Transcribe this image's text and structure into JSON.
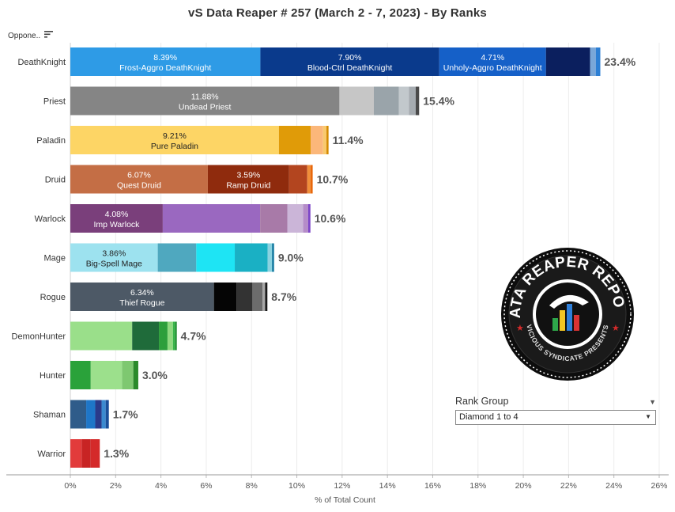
{
  "page": {
    "title": "vS Data Reaper #  257 (March 2 - 7, 2023) - By Ranks",
    "sort_label": "Oppone..",
    "sort_icon": "sort-descending-icon"
  },
  "filter": {
    "title": "Rank Group",
    "value": "Diamond 1 to 4",
    "caret_icon": "dropdown-caret-icon"
  },
  "logo": {
    "name": "data-reaper-report-logo",
    "text_top": "DATA REAPER REPORT",
    "text_bottom": "VICIOUS SYNDICATE PRESENTS"
  },
  "chart_data": {
    "type": "bar",
    "orientation": "horizontal-stacked",
    "xlabel": "% of Total Count",
    "ylabel": "",
    "xlim": [
      0,
      26
    ],
    "x_ticks": [
      "0%",
      "2%",
      "4%",
      "6%",
      "8%",
      "10%",
      "12%",
      "14%",
      "16%",
      "18%",
      "20%",
      "22%",
      "24%",
      "26%"
    ],
    "categories": [
      "DeathKnight",
      "Priest",
      "Paladin",
      "Druid",
      "Warlock",
      "Mage",
      "Rogue",
      "DemonHunter",
      "Hunter",
      "Shaman",
      "Warrior"
    ],
    "totals": [
      "23.4%",
      "15.4%",
      "11.4%",
      "10.7%",
      "10.6%",
      "9.0%",
      "8.7%",
      "4.7%",
      "3.0%",
      "1.7%",
      "1.3%"
    ],
    "rows": [
      {
        "class": "DeathKnight",
        "segments": [
          {
            "value": 8.39,
            "color": "#2e9be6",
            "label_pct": "8.39%",
            "label_name": "Frost-Aggro DeathKnight",
            "text_color": "#ffffff"
          },
          {
            "value": 7.9,
            "color": "#0a3a8c",
            "label_pct": "7.90%",
            "label_name": "Blood-Ctrl DeathKnight",
            "text_color": "#ffffff"
          },
          {
            "value": 4.71,
            "color": "#1560c8",
            "label_pct": "4.71%",
            "label_name": "Unholy-Aggro DeathKnight",
            "text_color": "#ffffff"
          },
          {
            "value": 1.95,
            "color": "#0b1f5e"
          },
          {
            "value": 0.25,
            "color": "#7aa7d8"
          },
          {
            "value": 0.2,
            "color": "#2d7fd4"
          }
        ]
      },
      {
        "class": "Priest",
        "segments": [
          {
            "value": 11.88,
            "color": "#858585",
            "label_pct": "11.88%",
            "label_name": "Undead Priest",
            "text_color": "#ffffff"
          },
          {
            "value": 1.52,
            "color": "#c6c6c6"
          },
          {
            "value": 1.1,
            "color": "#9aa4aa"
          },
          {
            "value": 0.45,
            "color": "#c2c8cc"
          },
          {
            "value": 0.3,
            "color": "#a5abb0"
          },
          {
            "value": 0.15,
            "color": "#4a4a4a"
          }
        ]
      },
      {
        "class": "Paladin",
        "segments": [
          {
            "value": 9.21,
            "color": "#fdd565",
            "label_pct": "9.21%",
            "label_name": "Pure Paladin",
            "text_color": "#222222"
          },
          {
            "value": 1.4,
            "color": "#e09b08"
          },
          {
            "value": 0.55,
            "color": "#fbb77a"
          },
          {
            "value": 0.15,
            "color": "#f9c96d"
          },
          {
            "value": 0.09,
            "color": "#d48a00"
          }
        ]
      },
      {
        "class": "Druid",
        "segments": [
          {
            "value": 6.07,
            "color": "#c46e45",
            "label_pct": "6.07%",
            "label_name": "Quest Druid",
            "text_color": "#ffffff"
          },
          {
            "value": 3.59,
            "color": "#8f2b0d",
            "label_pct": "3.59%",
            "label_name": "Ramp Druid",
            "text_color": "#ffffff"
          },
          {
            "value": 0.8,
            "color": "#b3451f"
          },
          {
            "value": 0.14,
            "color": "#f08f3a"
          },
          {
            "value": 0.1,
            "color": "#e8680c"
          }
        ]
      },
      {
        "class": "Warlock",
        "segments": [
          {
            "value": 4.08,
            "color": "#7a3f7b",
            "label_pct": "4.08%",
            "label_name": "Imp Warlock",
            "text_color": "#ffffff"
          },
          {
            "value": 4.3,
            "color": "#9a68c0"
          },
          {
            "value": 1.2,
            "color": "#a87aa8"
          },
          {
            "value": 0.7,
            "color": "#cbb5d8"
          },
          {
            "value": 0.22,
            "color": "#b58cc8"
          },
          {
            "value": 0.1,
            "color": "#7c45c8"
          }
        ]
      },
      {
        "class": "Mage",
        "segments": [
          {
            "value": 3.86,
            "color": "#9de2ef",
            "label_pct": "3.86%",
            "label_name": "Big-Spell Mage",
            "text_color": "#222222"
          },
          {
            "value": 1.7,
            "color": "#4fa8bf"
          },
          {
            "value": 1.7,
            "color": "#1ee4f4"
          },
          {
            "value": 1.45,
            "color": "#1ab0c4"
          },
          {
            "value": 0.19,
            "color": "#8ad2e0"
          },
          {
            "value": 0.1,
            "color": "#2585a8"
          }
        ]
      },
      {
        "class": "Rogue",
        "segments": [
          {
            "value": 6.34,
            "color": "#4d5966",
            "label_pct": "6.34%",
            "label_name": "Thief Rogue",
            "text_color": "#ffffff"
          },
          {
            "value": 1.0,
            "color": "#050505"
          },
          {
            "value": 0.7,
            "color": "#333333"
          },
          {
            "value": 0.45,
            "color": "#6c6c6c"
          },
          {
            "value": 0.11,
            "color": "#a8a8a8"
          },
          {
            "value": 0.1,
            "color": "#1a1a1a"
          }
        ]
      },
      {
        "class": "DemonHunter",
        "segments": [
          {
            "value": 2.73,
            "color": "#9adf8a"
          },
          {
            "value": 1.18,
            "color": "#1f6b3a"
          },
          {
            "value": 0.38,
            "color": "#2d9f3b"
          },
          {
            "value": 0.24,
            "color": "#8fd97f"
          },
          {
            "value": 0.1,
            "color": "#38b54a"
          },
          {
            "value": 0.07,
            "color": "#1d8a2f"
          }
        ]
      },
      {
        "class": "Hunter",
        "segments": [
          {
            "value": 0.9,
            "color": "#2aa23a"
          },
          {
            "value": 1.38,
            "color": "#9ce08c"
          },
          {
            "value": 0.5,
            "color": "#7ec870"
          },
          {
            "value": 0.22,
            "color": "#2a8a2a"
          }
        ]
      },
      {
        "class": "Shaman",
        "segments": [
          {
            "value": 0.7,
            "color": "#2f5c8a"
          },
          {
            "value": 0.4,
            "color": "#1e76c8"
          },
          {
            "value": 0.28,
            "color": "#2a3a8a"
          },
          {
            "value": 0.18,
            "color": "#3a8ad0"
          },
          {
            "value": 0.14,
            "color": "#1a4f9a"
          }
        ]
      },
      {
        "class": "Warrior",
        "segments": [
          {
            "value": 0.5,
            "color": "#e23b3b"
          },
          {
            "value": 0.4,
            "color": "#c82424"
          },
          {
            "value": 0.4,
            "color": "#d42a2a"
          }
        ]
      }
    ]
  }
}
